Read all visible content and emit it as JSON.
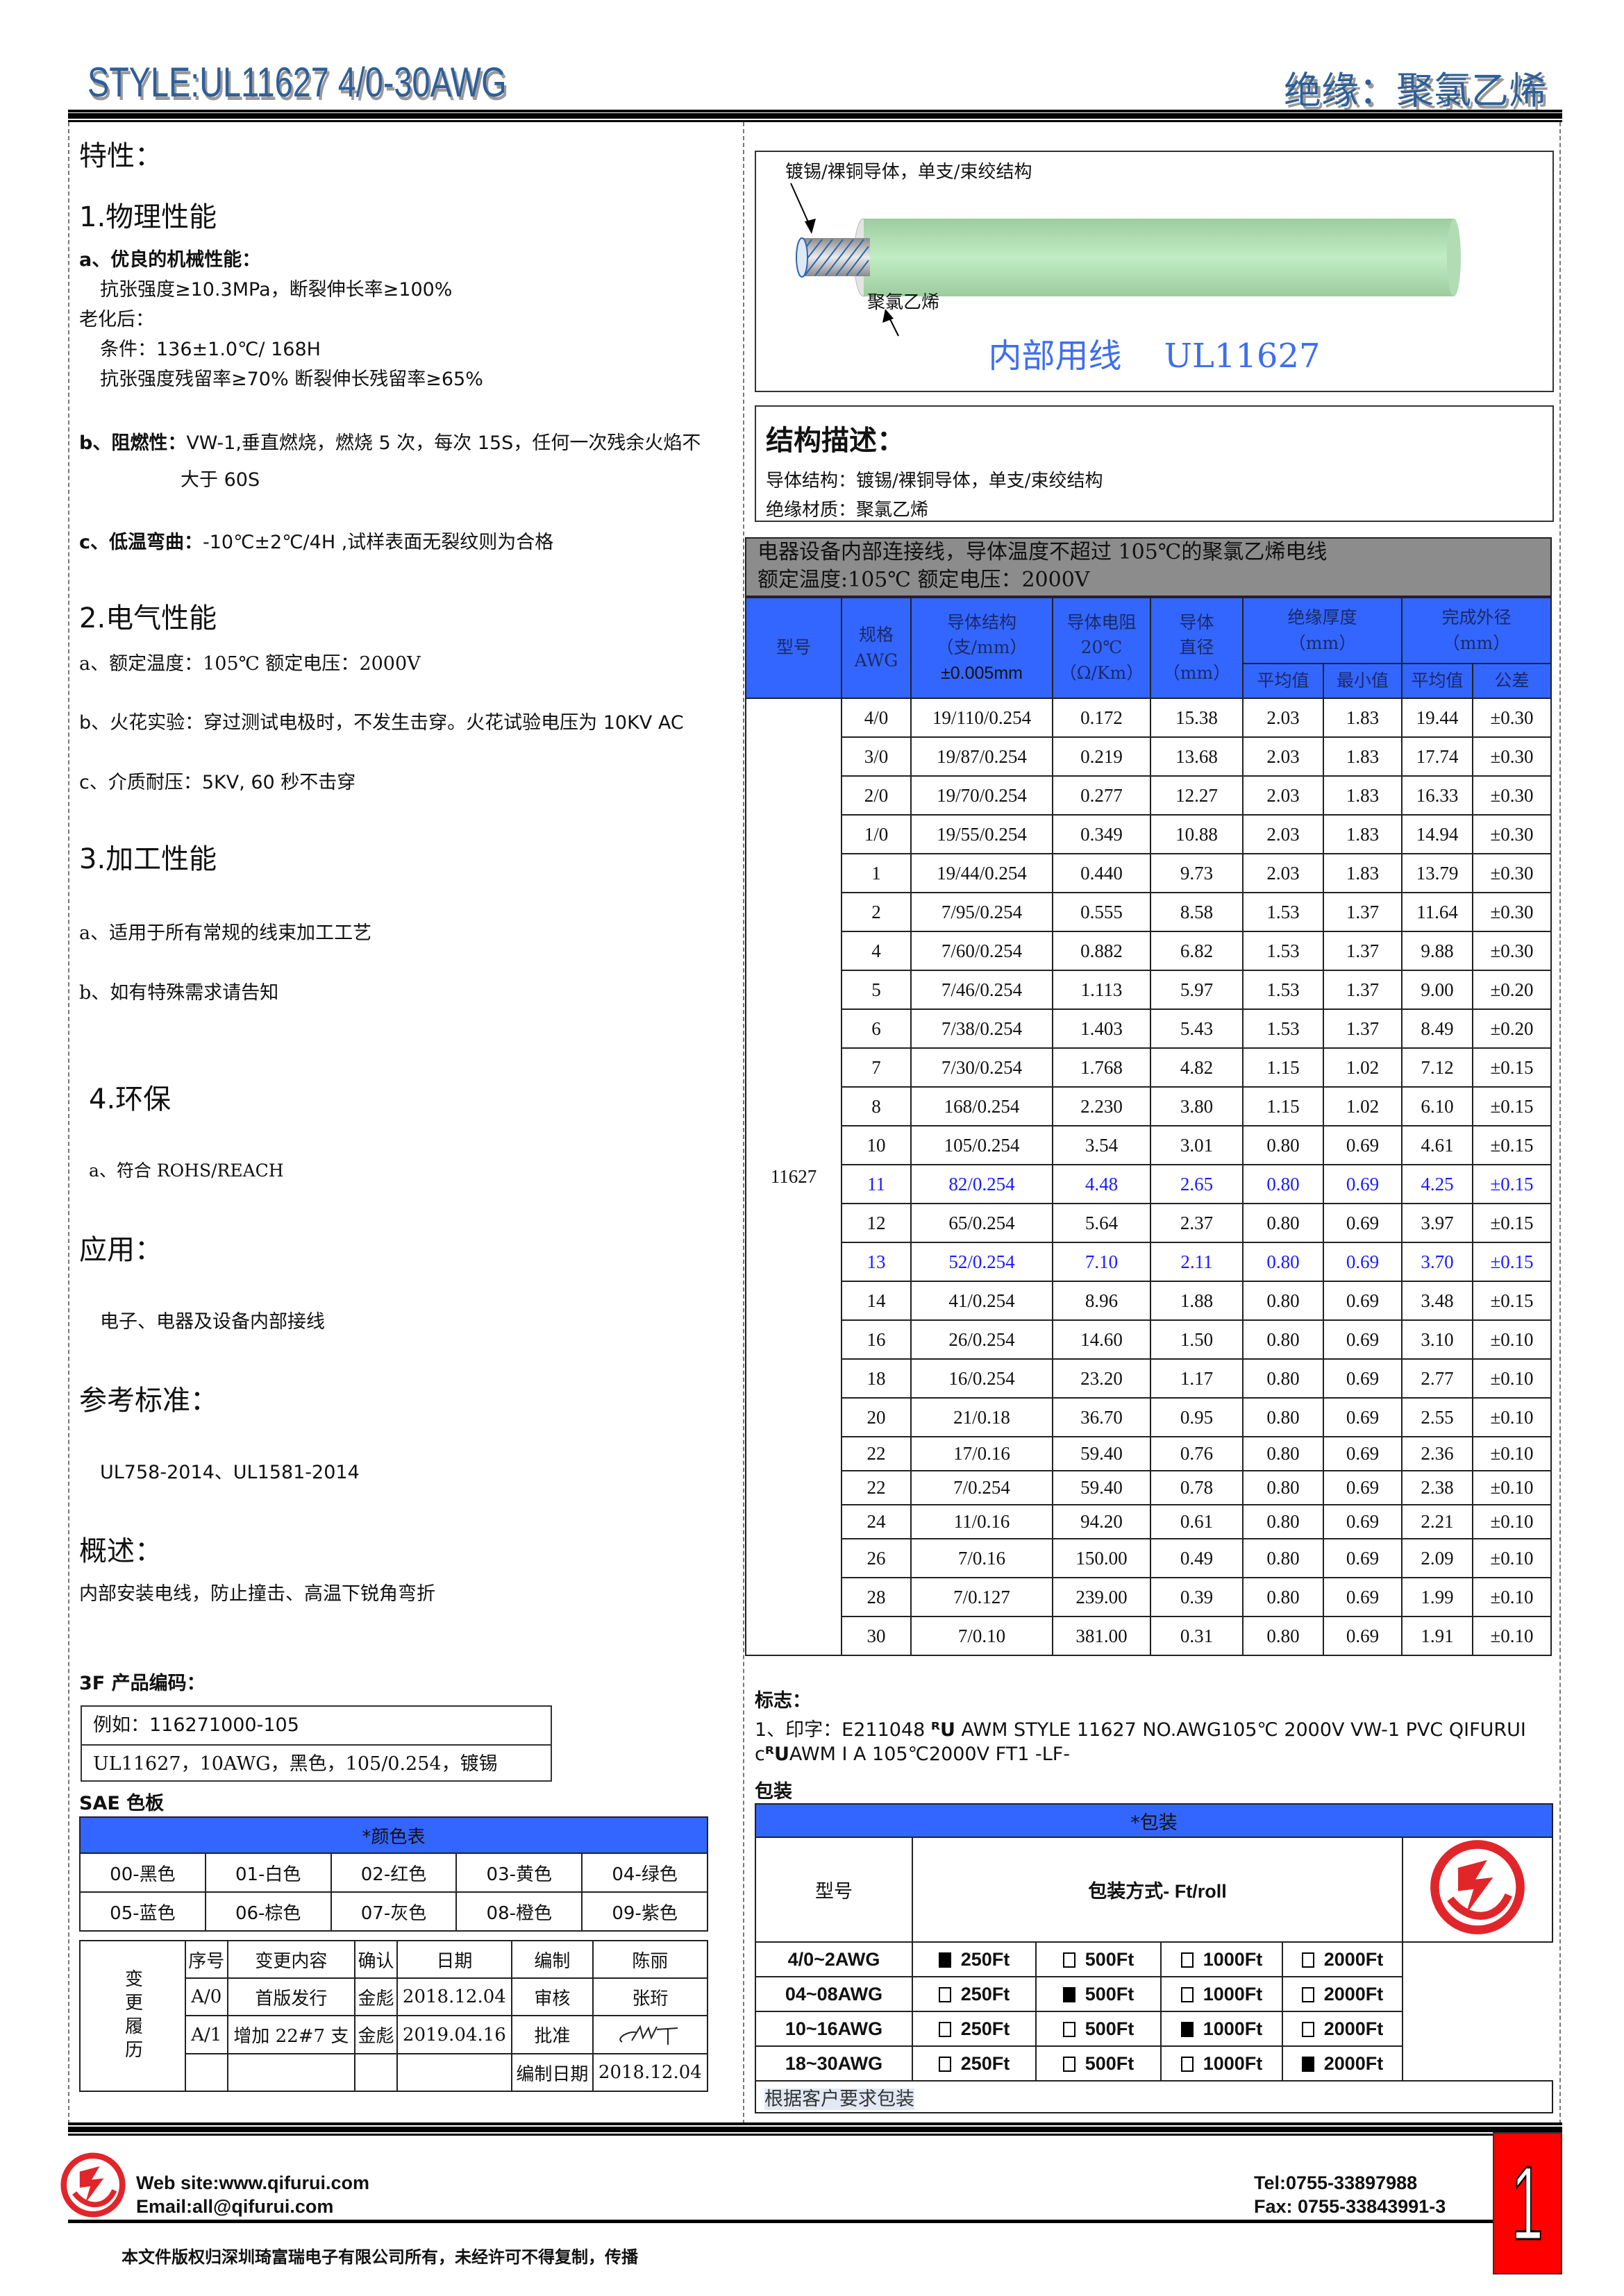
{
  "header": {
    "title": "STYLE:UL11627  4/0-30AWG",
    "insulation": "绝缘：聚氯乙烯"
  },
  "left": {
    "features_title": "特性：",
    "physical": {
      "title": "1.物理性能",
      "a_title": "a、优良的机械性能：",
      "a_line1": "抗张强度≥10.3MPa，断裂伸长率≥100%",
      "aging": "老化后：",
      "cond": "条件：136±1.0℃/ 168H",
      "retain": "抗张强度残留率≥70%  断裂伸长残留率≥65%",
      "b_label": "b、阻燃性：",
      "b_text": "VW-1,垂直燃烧，燃烧 5 次，每次 15S，任何一次残余火焰不",
      "b_text2": "大于 60S",
      "c_label": "c、低温弯曲：",
      "c_text": "-10℃±2℃/4H ,试样表面无裂纹则为合格"
    },
    "electrical": {
      "title": "2.电气性能",
      "a": "a、额定温度：105℃   额定电压：2000V",
      "b": "b、火花实验：穿过测试电极时，不发生击穿。火花试验电压为 10KV AC",
      "c": "c、介质耐压：5KV, 60  秒不击穿"
    },
    "processing": {
      "title": "3.加工性能",
      "a": "a、适用于所有常规的线束加工工艺",
      "b": "b、如有特殊需求请告知"
    },
    "env": {
      "title": "4.环保",
      "a": "a、符合 ROHS/REACH"
    },
    "application": {
      "title": "应用：",
      "text": "电子、电器及设备内部接线"
    },
    "standards": {
      "title": "参考标准：",
      "text": "UL758-2014、UL1581-2014"
    },
    "overview": {
      "title": "概述：",
      "text": "内部安装电线，防止撞击、高温下锐角弯折"
    },
    "code": {
      "title": "3F 产品编码：",
      "example": "例如：116271000-105",
      "desc": "UL11627，10AWG，黑色，105/0.254，镀锡"
    },
    "sae": {
      "title": "SAE 色板",
      "table_title": "*颜色表",
      "colors": [
        "00-黑色",
        "01-白色",
        "02-红色",
        "03-黄色",
        "04-绿色",
        "05-蓝色",
        "06-棕色",
        "07-灰色",
        "08-橙色",
        "09-紫色"
      ]
    },
    "revision": {
      "side_label": "变更履历",
      "headers": [
        "序号",
        "变更内容",
        "确认",
        "日期",
        "编制",
        "陈丽"
      ],
      "rows": [
        [
          "A/0",
          "首版发行",
          "金彪",
          "2018.12.04",
          "审核",
          "张珩"
        ],
        [
          "A/1",
          "增加 22#7 支",
          "金彪",
          "2019.04.16",
          "批准",
          ""
        ]
      ],
      "date_label": "编制日期",
      "date_value": "2018.12.04"
    }
  },
  "right": {
    "wire": {
      "conductor_label": "镀锡/裸铜导体，单支/束绞结构",
      "insulation_label": "聚氯乙烯",
      "caption": "内部用线    UL11627",
      "jacket_color": "#b8e6bc"
    },
    "structure": {
      "title": "结构描述：",
      "conductor": "导体结构：镀锡/裸铜导体，单支/束绞结构",
      "insulation": "绝缘材质：聚氯乙烯"
    },
    "banner": {
      "line1": "电器设备内部连接线，导体温度不超过 105℃的聚氯乙烯电线",
      "line2": "额定温度:105℃  额定电压：2000V"
    },
    "spec": {
      "h_model": "型号",
      "h_awg": "规格",
      "h_awg2": "AWG",
      "h_struct": "导体结构",
      "h_struct2": "（支/mm）",
      "h_struct3": "±0.005mm",
      "h_res": "导体电阻",
      "h_res2": "20℃",
      "h_res3": "（Ω/Km）",
      "h_dia": "导体",
      "h_dia2": "直径",
      "h_dia3": "（mm）",
      "h_ins": "绝缘厚度",
      "h_ins2": "（mm）",
      "h_od": "完成外径",
      "h_od2": "（mm）",
      "h_avg": "平均值",
      "h_min": "最小值",
      "h_avg2": "平均值",
      "h_tol": "公差",
      "model": "11627",
      "highlight_color": "#1a1aff",
      "rows": [
        {
          "awg": "4/0",
          "struct": "19/110/0.254",
          "res": "0.172",
          "dia": "15.38",
          "avg": "2.03",
          "min": "1.83",
          "od": "19.44",
          "tol": "±0.30"
        },
        {
          "awg": "3/0",
          "struct": "19/87/0.254",
          "res": "0.219",
          "dia": "13.68",
          "avg": "2.03",
          "min": "1.83",
          "od": "17.74",
          "tol": "±0.30"
        },
        {
          "awg": "2/0",
          "struct": "19/70/0.254",
          "res": "0.277",
          "dia": "12.27",
          "avg": "2.03",
          "min": "1.83",
          "od": "16.33",
          "tol": "±0.30"
        },
        {
          "awg": "1/0",
          "struct": "19/55/0.254",
          "res": "0.349",
          "dia": "10.88",
          "avg": "2.03",
          "min": "1.83",
          "od": "14.94",
          "tol": "±0.30"
        },
        {
          "awg": "1",
          "struct": "19/44/0.254",
          "res": "0.440",
          "dia": "9.73",
          "avg": "2.03",
          "min": "1.83",
          "od": "13.79",
          "tol": "±0.30"
        },
        {
          "awg": "2",
          "struct": "7/95/0.254",
          "res": "0.555",
          "dia": "8.58",
          "avg": "1.53",
          "min": "1.37",
          "od": "11.64",
          "tol": "±0.30"
        },
        {
          "awg": "4",
          "struct": "7/60/0.254",
          "res": "0.882",
          "dia": "6.82",
          "avg": "1.53",
          "min": "1.37",
          "od": "9.88",
          "tol": "±0.30"
        },
        {
          "awg": "5",
          "struct": "7/46/0.254",
          "res": "1.113",
          "dia": "5.97",
          "avg": "1.53",
          "min": "1.37",
          "od": "9.00",
          "tol": "±0.20"
        },
        {
          "awg": "6",
          "struct": "7/38/0.254",
          "res": "1.403",
          "dia": "5.43",
          "avg": "1.53",
          "min": "1.37",
          "od": "8.49",
          "tol": "±0.20"
        },
        {
          "awg": "7",
          "struct": "7/30/0.254",
          "res": "1.768",
          "dia": "4.82",
          "avg": "1.15",
          "min": "1.02",
          "od": "7.12",
          "tol": "±0.15"
        },
        {
          "awg": "8",
          "struct": "168/0.254",
          "res": "2.230",
          "dia": "3.80",
          "avg": "1.15",
          "min": "1.02",
          "od": "6.10",
          "tol": "±0.15"
        },
        {
          "awg": "10",
          "struct": "105/0.254",
          "res": "3.54",
          "dia": "3.01",
          "avg": "0.80",
          "min": "0.69",
          "od": "4.61",
          "tol": "±0.15"
        },
        {
          "awg": "11",
          "struct": "82/0.254",
          "res": "4.48",
          "dia": "2.65",
          "avg": "0.80",
          "min": "0.69",
          "od": "4.25",
          "tol": "±0.15",
          "highlight": true
        },
        {
          "awg": "12",
          "struct": "65/0.254",
          "res": "5.64",
          "dia": "2.37",
          "avg": "0.80",
          "min": "0.69",
          "od": "3.97",
          "tol": "±0.15"
        },
        {
          "awg": "13",
          "struct": "52/0.254",
          "res": "7.10",
          "dia": "2.11",
          "avg": "0.80",
          "min": "0.69",
          "od": "3.70",
          "tol": "±0.15",
          "highlight": true
        },
        {
          "awg": "14",
          "struct": "41/0.254",
          "res": "8.96",
          "dia": "1.88",
          "avg": "0.80",
          "min": "0.69",
          "od": "3.48",
          "tol": "±0.15"
        },
        {
          "awg": "16",
          "struct": "26/0.254",
          "res": "14.60",
          "dia": "1.50",
          "avg": "0.80",
          "min": "0.69",
          "od": "3.10",
          "tol": "±0.10"
        },
        {
          "awg": "18",
          "struct": "16/0.254",
          "res": "23.20",
          "dia": "1.17",
          "avg": "0.80",
          "min": "0.69",
          "od": "2.77",
          "tol": "±0.10"
        },
        {
          "awg": "20",
          "struct": "21/0.18",
          "res": "36.70",
          "dia": "0.95",
          "avg": "0.80",
          "min": "0.69",
          "od": "2.55",
          "tol": "±0.10"
        },
        {
          "awg": "22",
          "struct": "17/0.16",
          "res": "59.40",
          "dia": "0.76",
          "avg": "0.80",
          "min": "0.69",
          "od": "2.36",
          "tol": "±0.10"
        },
        {
          "awg": "22",
          "struct": "7/0.254",
          "res": "59.40",
          "dia": "0.78",
          "avg": "0.80",
          "min": "0.69",
          "od": "2.38",
          "tol": "±0.10"
        },
        {
          "awg": "24",
          "struct": "11/0.16",
          "res": "94.20",
          "dia": "0.61",
          "avg": "0.80",
          "min": "0.69",
          "od": "2.21",
          "tol": "±0.10"
        },
        {
          "awg": "26",
          "struct": "7/0.16",
          "res": "150.00",
          "dia": "0.49",
          "avg": "0.80",
          "min": "0.69",
          "od": "2.09",
          "tol": "±0.10"
        },
        {
          "awg": "28",
          "struct": "7/0.127",
          "res": "239.00",
          "dia": "0.39",
          "avg": "0.80",
          "min": "0.69",
          "od": "1.99",
          "tol": "±0.10"
        },
        {
          "awg": "30",
          "struct": "7/0.10",
          "res": "381.00",
          "dia": "0.31",
          "avg": "0.80",
          "min": "0.69",
          "od": "1.91",
          "tol": "±0.10"
        }
      ]
    },
    "marking": {
      "title": "标志：",
      "line1_prefix": "1、印字：E211048 ",
      "line1_ul": "ᴿU",
      "line1_rest": "  AWM STYLE 11627 NO.AWG105℃  2000V VW-1 PVC QIFURUI",
      "line2_prefix": "c",
      "line2_ul": "ᴿU",
      "line2_rest": "AWM I A 105℃2000V FT1 -LF-"
    },
    "packaging": {
      "title": "包装",
      "table_title": "*包装",
      "h_model": "型号",
      "h_method": "包装方式- Ft/roll",
      "options": [
        "250Ft",
        "500Ft",
        "1000Ft",
        "2000Ft"
      ],
      "rows": [
        {
          "model": "4/0~2AWG",
          "selected": 0
        },
        {
          "model": "04~08AWG",
          "selected": 1
        },
        {
          "model": "10~16AWG",
          "selected": 2
        },
        {
          "model": "18~30AWG",
          "selected": 3
        }
      ],
      "note": "根据客户要求包装"
    }
  },
  "footer": {
    "website": "Web site:www.qifurui.com",
    "email": "Email:all@qifurui.com",
    "tel": "Tel:0755-33897988",
    "fax": "Fax: 0755-33843991-3",
    "page_number": "1",
    "copyright": "本文件版权归深圳琦富瑞电子有限公司所有，未经许可不得复制，传播",
    "brand_color": "#e0262b"
  }
}
